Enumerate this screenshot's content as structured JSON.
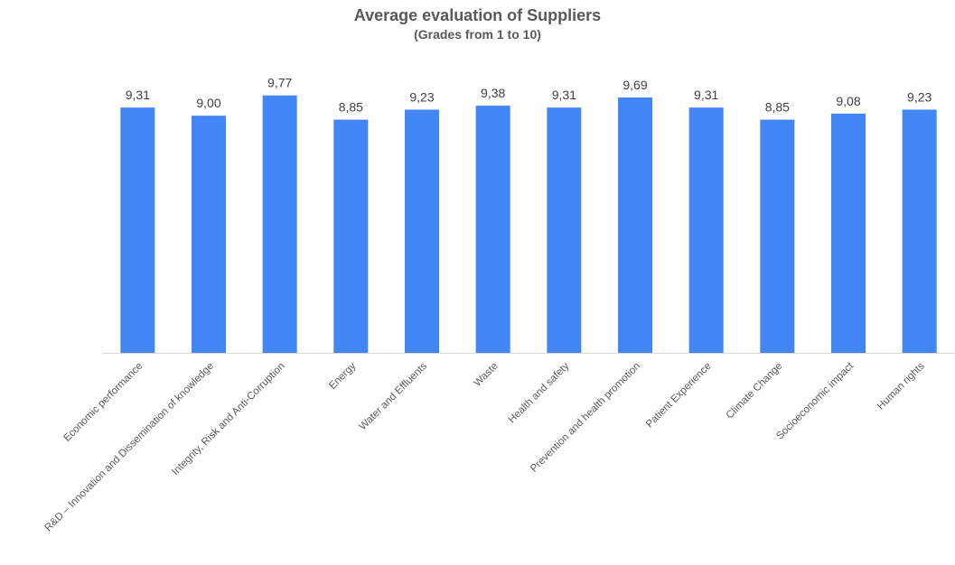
{
  "chart_data": {
    "type": "bar",
    "title": "Average evaluation of Suppliers",
    "subtitle": "(Grades from 1 to 10)",
    "categories": [
      "Economic performance",
      "R&D – Innovation and Dissemination of knowledge",
      "Integrity, Risk and Anti-Corruption",
      "Energy",
      "Water and Effluents",
      "Waste",
      "Health and safety",
      "Prevention and health promotion",
      "Patient Experience",
      "Climate Change",
      "Socioeconomic impact",
      "Human rights"
    ],
    "values": [
      9.31,
      9.0,
      9.77,
      8.85,
      9.23,
      9.38,
      9.31,
      9.69,
      9.31,
      8.85,
      9.08,
      9.23
    ],
    "value_labels": [
      "9,31",
      "9,00",
      "9,77",
      "8,85",
      "9,23",
      "9,38",
      "9,31",
      "9,69",
      "9,31",
      "8,85",
      "9,08",
      "9,23"
    ],
    "ylim": [
      0,
      10
    ],
    "grid": false,
    "legend": "none",
    "bar_color": "#4285f4",
    "text_color": "#595959"
  }
}
